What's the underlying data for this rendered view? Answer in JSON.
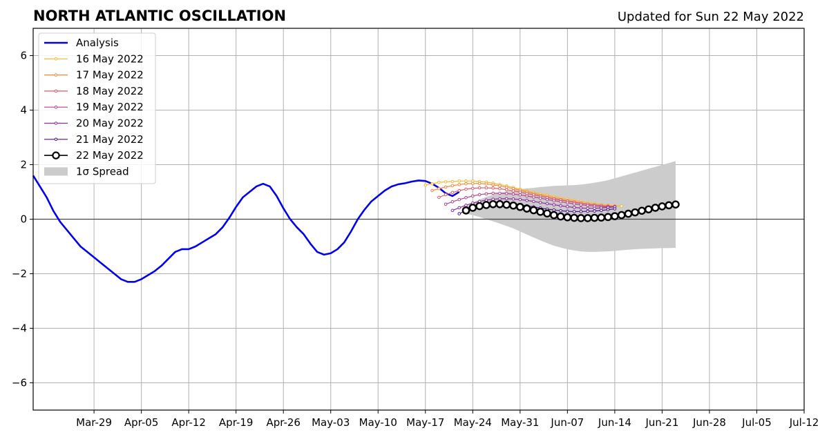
{
  "header": {
    "title": "NORTH ATLANTIC OSCILLATION",
    "updated": "Updated for Sun 22 May 2022"
  },
  "chart_data": {
    "type": "line",
    "title": "NORTH ATLANTIC OSCILLATION",
    "xlabel": "",
    "ylabel": "",
    "x_range": [
      "2022-03-20",
      "2022-07-12"
    ],
    "ylim": [
      -7,
      7
    ],
    "y_ticks": [
      -6,
      -4,
      -2,
      0,
      2,
      4,
      6
    ],
    "y_tick_labels": [
      "−6",
      "−4",
      "−2",
      "0",
      "2",
      "4",
      "6"
    ],
    "x_ticks": [
      "2022-03-29",
      "2022-04-05",
      "2022-04-12",
      "2022-04-19",
      "2022-04-26",
      "2022-05-03",
      "2022-05-10",
      "2022-05-17",
      "2022-05-24",
      "2022-05-31",
      "2022-06-07",
      "2022-06-14",
      "2022-06-21",
      "2022-06-28",
      "2022-07-05",
      "2022-07-12"
    ],
    "x_tick_labels": [
      "Mar-29",
      "Apr-05",
      "Apr-12",
      "Apr-19",
      "Apr-26",
      "May-03",
      "May-10",
      "May-17",
      "May-24",
      "May-31",
      "Jun-07",
      "Jun-14",
      "Jun-21",
      "Jun-28",
      "Jul-05",
      "Jul-12"
    ],
    "grid": true,
    "legend_position": "top-left",
    "analysis": {
      "name": "Analysis",
      "color": "#0000ee",
      "points": [
        [
          "2022-03-20",
          1.6
        ],
        [
          "2022-03-21",
          1.2
        ],
        [
          "2022-03-22",
          0.8
        ],
        [
          "2022-03-23",
          0.3
        ],
        [
          "2022-03-24",
          -0.1
        ],
        [
          "2022-03-25",
          -0.4
        ],
        [
          "2022-03-26",
          -0.7
        ],
        [
          "2022-03-27",
          -1.0
        ],
        [
          "2022-03-28",
          -1.2
        ],
        [
          "2022-03-29",
          -1.4
        ],
        [
          "2022-03-30",
          -1.6
        ],
        [
          "2022-03-31",
          -1.8
        ],
        [
          "2022-04-01",
          -2.0
        ],
        [
          "2022-04-02",
          -2.2
        ],
        [
          "2022-04-03",
          -2.3
        ],
        [
          "2022-04-04",
          -2.3
        ],
        [
          "2022-04-05",
          -2.2
        ],
        [
          "2022-04-06",
          -2.05
        ],
        [
          "2022-04-07",
          -1.9
        ],
        [
          "2022-04-08",
          -1.7
        ],
        [
          "2022-04-09",
          -1.45
        ],
        [
          "2022-04-10",
          -1.2
        ],
        [
          "2022-04-11",
          -1.1
        ],
        [
          "2022-04-12",
          -1.1
        ],
        [
          "2022-04-13",
          -1.0
        ],
        [
          "2022-04-14",
          -0.85
        ],
        [
          "2022-04-15",
          -0.7
        ],
        [
          "2022-04-16",
          -0.55
        ],
        [
          "2022-04-17",
          -0.3
        ],
        [
          "2022-04-18",
          0.05
        ],
        [
          "2022-04-19",
          0.45
        ],
        [
          "2022-04-20",
          0.8
        ],
        [
          "2022-04-21",
          1.0
        ],
        [
          "2022-04-22",
          1.2
        ],
        [
          "2022-04-23",
          1.3
        ],
        [
          "2022-04-24",
          1.2
        ],
        [
          "2022-04-25",
          0.85
        ],
        [
          "2022-04-26",
          0.4
        ],
        [
          "2022-04-27",
          0.0
        ],
        [
          "2022-04-28",
          -0.3
        ],
        [
          "2022-04-29",
          -0.55
        ],
        [
          "2022-04-30",
          -0.9
        ],
        [
          "2022-05-01",
          -1.2
        ],
        [
          "2022-05-02",
          -1.3
        ],
        [
          "2022-05-03",
          -1.25
        ],
        [
          "2022-05-04",
          -1.1
        ],
        [
          "2022-05-05",
          -0.85
        ],
        [
          "2022-05-06",
          -0.45
        ],
        [
          "2022-05-07",
          0.0
        ],
        [
          "2022-05-08",
          0.35
        ],
        [
          "2022-05-09",
          0.65
        ],
        [
          "2022-05-10",
          0.85
        ],
        [
          "2022-05-11",
          1.05
        ],
        [
          "2022-05-12",
          1.2
        ],
        [
          "2022-05-13",
          1.28
        ],
        [
          "2022-05-14",
          1.32
        ],
        [
          "2022-05-15",
          1.38
        ],
        [
          "2022-05-16",
          1.42
        ],
        [
          "2022-05-17",
          1.4
        ],
        [
          "2022-05-18",
          1.3
        ],
        [
          "2022-05-19",
          1.15
        ],
        [
          "2022-05-20",
          0.95
        ],
        [
          "2022-05-21",
          0.85
        ],
        [
          "2022-05-22",
          1.0
        ]
      ]
    },
    "forecasts": [
      {
        "name": "16 May 2022",
        "color": "#f5b82e",
        "start": "2022-05-17",
        "values": [
          1.25,
          1.3,
          1.35,
          1.37,
          1.38,
          1.4,
          1.4,
          1.4,
          1.38,
          1.36,
          1.32,
          1.27,
          1.22,
          1.16,
          1.1,
          1.04,
          0.98,
          0.93,
          0.88,
          0.83,
          0.78,
          0.73,
          0.69,
          0.65,
          0.61,
          0.57,
          0.54,
          0.51,
          0.49,
          0.48
        ]
      },
      {
        "name": "17 May 2022",
        "color": "#ef8a3a",
        "start": "2022-05-18",
        "values": [
          1.05,
          1.12,
          1.18,
          1.23,
          1.27,
          1.3,
          1.31,
          1.31,
          1.29,
          1.26,
          1.22,
          1.17,
          1.12,
          1.06,
          1.0,
          0.94,
          0.88,
          0.83,
          0.78,
          0.73,
          0.68,
          0.64,
          0.6,
          0.56,
          0.53,
          0.5,
          0.48,
          0.47
        ]
      },
      {
        "name": "18 May 2022",
        "color": "#db5a6b",
        "start": "2022-05-19",
        "values": [
          0.8,
          0.9,
          0.98,
          1.05,
          1.1,
          1.13,
          1.15,
          1.15,
          1.14,
          1.12,
          1.08,
          1.04,
          0.99,
          0.94,
          0.89,
          0.84,
          0.79,
          0.74,
          0.7,
          0.66,
          0.62,
          0.58,
          0.55,
          0.52,
          0.5,
          0.48,
          0.47
        ]
      },
      {
        "name": "19 May 2022",
        "color": "#b4408f",
        "start": "2022-05-20",
        "values": [
          0.55,
          0.64,
          0.72,
          0.79,
          0.85,
          0.9,
          0.93,
          0.95,
          0.95,
          0.94,
          0.92,
          0.89,
          0.85,
          0.81,
          0.77,
          0.72,
          0.68,
          0.64,
          0.6,
          0.56,
          0.53,
          0.5,
          0.48,
          0.46,
          0.45,
          0.45
        ]
      },
      {
        "name": "20 May 2022",
        "color": "#8a2a9e",
        "start": "2022-05-21",
        "values": [
          0.32,
          0.42,
          0.51,
          0.59,
          0.65,
          0.7,
          0.73,
          0.75,
          0.75,
          0.74,
          0.72,
          0.69,
          0.65,
          0.61,
          0.57,
          0.53,
          0.49,
          0.46,
          0.43,
          0.41,
          0.4,
          0.4,
          0.41,
          0.43,
          0.45
        ]
      },
      {
        "name": "21 May 2022",
        "color": "#4b1387",
        "start": "2022-05-22",
        "values": [
          0.2,
          0.32,
          0.42,
          0.5,
          0.55,
          0.58,
          0.59,
          0.58,
          0.56,
          0.53,
          0.49,
          0.45,
          0.41,
          0.37,
          0.34,
          0.31,
          0.29,
          0.28,
          0.28,
          0.29,
          0.3,
          0.32,
          0.35,
          0.38
        ]
      },
      {
        "name": "22 May 2022",
        "color": "#000000",
        "start": "2022-05-23",
        "values": [
          0.32,
          0.42,
          0.48,
          0.52,
          0.55,
          0.55,
          0.53,
          0.5,
          0.45,
          0.39,
          0.33,
          0.27,
          0.21,
          0.15,
          0.1,
          0.07,
          0.05,
          0.04,
          0.04,
          0.05,
          0.06,
          0.08,
          0.11,
          0.15,
          0.2,
          0.25,
          0.31,
          0.36,
          0.42,
          0.47,
          0.51,
          0.54
        ]
      }
    ],
    "spread": {
      "name": "1σ Spread",
      "color": "#cccccc",
      "start": "2022-05-23",
      "upper": [
        0.45,
        0.6,
        0.72,
        0.82,
        0.9,
        0.97,
        1.02,
        1.07,
        1.1,
        1.13,
        1.15,
        1.18,
        1.2,
        1.22,
        1.23,
        1.24,
        1.25,
        1.27,
        1.3,
        1.34,
        1.38,
        1.43,
        1.5,
        1.57,
        1.64,
        1.71,
        1.78,
        1.85,
        1.92,
        1.99,
        2.06,
        2.13
      ],
      "lower": [
        0.2,
        0.15,
        0.08,
        0.0,
        -0.08,
        -0.16,
        -0.25,
        -0.34,
        -0.45,
        -0.56,
        -0.67,
        -0.78,
        -0.88,
        -0.97,
        -1.04,
        -1.1,
        -1.15,
        -1.18,
        -1.2,
        -1.2,
        -1.19,
        -1.18,
        -1.16,
        -1.14,
        -1.12,
        -1.1,
        -1.09,
        -1.08,
        -1.07,
        -1.06,
        -1.06,
        -1.05
      ]
    }
  }
}
